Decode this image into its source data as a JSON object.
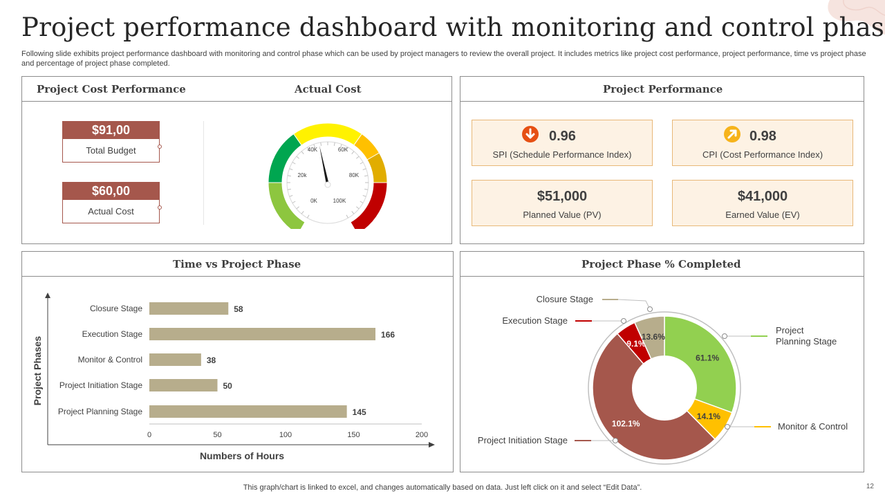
{
  "header": {
    "title": "Project performance dashboard with monitoring and control phase",
    "subtitle": "Following slide exhibits project performance dashboard with monitoring and control phase which can be used by project managers to review the overall project. It includes metrics like project cost performance, project performance, time vs project phase and percentage of project phase completed."
  },
  "cost_panel": {
    "title": "Project Cost Performance",
    "gauge_title": "Actual Cost",
    "total_budget_value": "$91,00",
    "total_budget_label": "Total Budget",
    "actual_cost_value": "$60,00",
    "actual_cost_label": "Actual Cost",
    "gauge": {
      "ticks": [
        "0K",
        "20k",
        "40K",
        "60K",
        "80K",
        "100K"
      ],
      "needle_value_fraction": 0.46,
      "colors": [
        "#8dc63f",
        "#00a650",
        "#fff200",
        "#ffc000",
        "#e1ad00",
        "#c00000"
      ]
    }
  },
  "performance_panel": {
    "title": "Project Performance",
    "spi_value": "0.96",
    "spi_label": "SPI (Schedule Performance Index)",
    "spi_icon": "arrow-down-circle-icon",
    "spi_icon_color": "#e65014",
    "cpi_value": "0.98",
    "cpi_label": "CPI (Cost Performance Index)",
    "cpi_icon": "arrow-up-right-circle-icon",
    "cpi_icon_color": "#f6b31b",
    "pv_value": "$51,000",
    "pv_label": "Planned Value (PV)",
    "ev_value": "$41,000",
    "ev_label": "Earned Value (EV)"
  },
  "chart_data": [
    {
      "type": "bar",
      "orientation": "horizontal",
      "title": "Time vs Project Phase",
      "xlabel": "Numbers of Hours",
      "ylabel": "Project Phases",
      "categories": [
        "Closure Stage",
        "Execution Stage",
        "Monitor & Control",
        "Project Initiation Stage",
        "Project Planning Stage"
      ],
      "values": [
        58,
        166,
        38,
        50,
        145
      ],
      "xlim": [
        0,
        200
      ],
      "xticks": [
        "0",
        "50",
        "100",
        "150",
        "200"
      ],
      "bar_color": "#b7ad8c",
      "grid": false
    },
    {
      "type": "pie",
      "style": "donut",
      "title": "Project Phase % Completed",
      "slices": [
        {
          "name": "Project Planning Stage",
          "label": "61.1%",
          "value": 61.1,
          "color": "#92d050"
        },
        {
          "name": "Monitor & Control",
          "label": "14.1%",
          "value": 14.1,
          "color": "#ffc000"
        },
        {
          "name": "Project Initiation Stage",
          "label": "102.1%",
          "value": 102.1,
          "color": "#a5574c"
        },
        {
          "name": "Execution Stage",
          "label": "9.1%",
          "value": 9.1,
          "color": "#c00000"
        },
        {
          "name": "Closure Stage",
          "label": "13.6%",
          "value": 13.6,
          "color": "#b7ad8c"
        }
      ],
      "legend": {
        "closure": "Closure Stage",
        "execution": "Execution Stage",
        "planning_line1": "Project",
        "planning_line2": "Planning Stage",
        "monitor": "Monitor & Control",
        "initiation": "Project Initiation Stage"
      }
    }
  ],
  "footer": {
    "note": "This graph/chart is linked to excel,  and changes automatically based on data. Just left click on it and select “Edit Data”.",
    "page_number": "12"
  }
}
